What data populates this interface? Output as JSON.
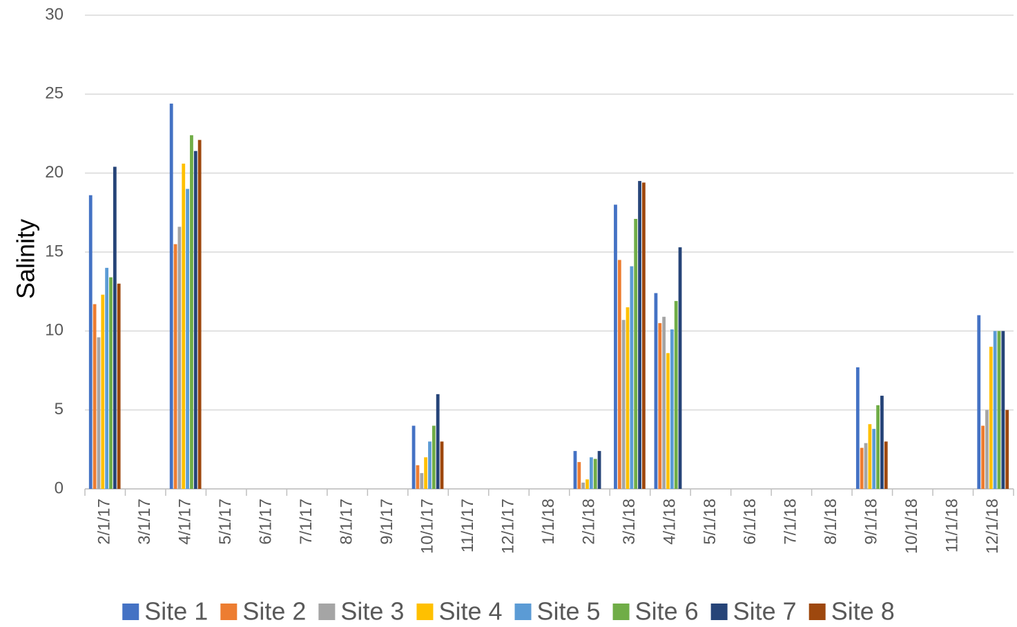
{
  "chart_data": {
    "type": "bar",
    "y_label": "Salinity",
    "categories": [
      "2/1/17",
      "3/1/17",
      "4/1/17",
      "5/1/17",
      "6/1/17",
      "7/1/17",
      "8/1/17",
      "9/1/17",
      "10/1/17",
      "11/1/17",
      "12/1/17",
      "1/1/18",
      "2/1/18",
      "3/1/18",
      "4/1/18",
      "5/1/18",
      "6/1/18",
      "7/1/18",
      "8/1/18",
      "9/1/18",
      "10/1/18",
      "11/1/18",
      "12/1/18"
    ],
    "series": [
      {
        "name": "Site 1",
        "color": "#4472c4",
        "values": [
          18.6,
          null,
          24.4,
          null,
          null,
          null,
          null,
          null,
          4.0,
          null,
          null,
          null,
          2.4,
          18.0,
          12.4,
          null,
          null,
          null,
          null,
          7.7,
          null,
          null,
          11.0
        ]
      },
      {
        "name": "Site 2",
        "color": "#ed7d31",
        "values": [
          11.7,
          null,
          15.5,
          null,
          null,
          null,
          null,
          null,
          1.5,
          null,
          null,
          null,
          1.7,
          14.5,
          10.5,
          null,
          null,
          null,
          null,
          2.6,
          null,
          null,
          4.0
        ]
      },
      {
        "name": "Site 3",
        "color": "#a5a5a5",
        "values": [
          9.6,
          null,
          16.6,
          null,
          null,
          null,
          null,
          null,
          1.0,
          null,
          null,
          null,
          0.4,
          10.7,
          10.9,
          null,
          null,
          null,
          null,
          2.9,
          null,
          null,
          5.0
        ]
      },
      {
        "name": "Site 4",
        "color": "#ffc000",
        "values": [
          12.3,
          null,
          20.6,
          null,
          null,
          null,
          null,
          null,
          2.0,
          null,
          null,
          null,
          0.6,
          11.5,
          8.6,
          null,
          null,
          null,
          null,
          4.1,
          null,
          null,
          9.0
        ]
      },
      {
        "name": "Site 5",
        "color": "#5b9bd5",
        "values": [
          14.0,
          null,
          19.0,
          null,
          null,
          null,
          null,
          null,
          3.0,
          null,
          null,
          null,
          2.0,
          14.1,
          10.1,
          null,
          null,
          null,
          null,
          3.8,
          null,
          null,
          10.0
        ]
      },
      {
        "name": "Site 6",
        "color": "#70ad47",
        "values": [
          13.4,
          null,
          22.4,
          null,
          null,
          null,
          null,
          null,
          4.0,
          null,
          null,
          null,
          1.9,
          17.1,
          11.9,
          null,
          null,
          null,
          null,
          5.3,
          null,
          null,
          10.0
        ]
      },
      {
        "name": "Site 7",
        "color": "#264478",
        "values": [
          20.4,
          null,
          21.4,
          null,
          null,
          null,
          null,
          null,
          6.0,
          null,
          null,
          null,
          2.4,
          19.5,
          15.3,
          null,
          null,
          null,
          null,
          5.9,
          null,
          null,
          10.0
        ]
      },
      {
        "name": "Site 8",
        "color": "#9e480e",
        "values": [
          13.0,
          null,
          22.1,
          null,
          null,
          null,
          null,
          null,
          3.0,
          null,
          null,
          null,
          null,
          19.4,
          null,
          null,
          null,
          null,
          null,
          3.0,
          null,
          null,
          5.0
        ]
      }
    ],
    "ylim": [
      0,
      30
    ],
    "yticks": [
      0,
      5,
      10,
      15,
      20,
      25,
      30
    ],
    "grid": true,
    "legend": "bottom"
  }
}
